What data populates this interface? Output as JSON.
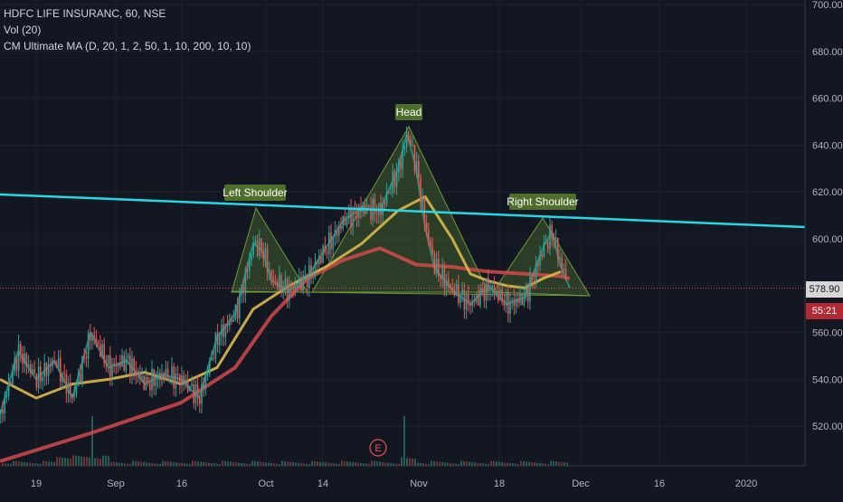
{
  "legend": {
    "title": "HDFC LIFE INSURANC, 60, NSE",
    "volume": "Vol (20)",
    "indicator": "CM Ultimate MA (D, 20, 1, 2, 50, 1, 10, 200, 10, 10)"
  },
  "price_axis": {
    "ticks": [
      "700.00",
      "680.00",
      "660.00",
      "640.00",
      "620.00",
      "600.00",
      "580.00",
      "560.00",
      "540.00",
      "520.00"
    ],
    "last_price": "578.90",
    "countdown": "55:21"
  },
  "time_axis": {
    "ticks": [
      "19",
      "Sep",
      "16",
      "Oct",
      "14",
      "Nov",
      "18",
      "Dec",
      "16",
      "2020"
    ]
  },
  "annotations": {
    "left_shoulder": "Left Shoulder",
    "head": "Head",
    "right_shoulder": "Right Shoulder",
    "earnings": "E"
  },
  "colors": {
    "background": "#131722",
    "neckline": "#26d7e5",
    "pattern_fill": "#4a6b2e",
    "label_bg": "#4f6e2c",
    "ma_fast": "#26a69a",
    "ma_mid": "#d8b84e",
    "ma_slow": "#d04a4a",
    "last_price_line": "#e05555"
  },
  "chart_data": {
    "type": "line",
    "title": "HDFC LIFE INSURANC, 60, NSE",
    "ylim": [
      505,
      705
    ],
    "series": [
      {
        "name": "Price",
        "x": [
          0,
          20,
          40,
          60,
          80,
          100,
          120,
          140,
          160,
          180,
          200,
          220,
          240,
          260,
          280,
          290,
          300,
          320,
          340,
          360,
          380,
          400,
          420,
          440,
          450,
          460,
          470,
          480,
          500,
          520,
          540,
          560,
          580,
          600,
          610,
          620,
          630
        ],
        "values": [
          525,
          552,
          540,
          548,
          532,
          560,
          545,
          548,
          538,
          542,
          540,
          532,
          558,
          568,
          598,
          595,
          582,
          578,
          584,
          596,
          608,
          613,
          612,
          630,
          645,
          630,
          605,
          588,
          578,
          572,
          580,
          572,
          575,
          596,
          603,
          588,
          579
        ]
      },
      {
        "name": "MA slow",
        "x": [
          0,
          100,
          200,
          260,
          300,
          340,
          380,
          420,
          460,
          500,
          540,
          580,
          620,
          630
        ],
        "values": [
          505,
          517,
          530,
          545,
          567,
          583,
          591,
          596,
          589,
          588,
          586,
          585,
          584,
          583
        ]
      },
      {
        "name": "MA mid",
        "x": [
          0,
          40,
          80,
          120,
          160,
          200,
          240,
          280,
          320,
          360,
          400,
          440,
          470,
          500,
          520,
          540,
          560,
          580,
          600,
          620
        ],
        "values": [
          540,
          532,
          538,
          540,
          543,
          538,
          545,
          570,
          580,
          588,
          598,
          612,
          618,
          600,
          585,
          582,
          580,
          579,
          583,
          586
        ]
      }
    ],
    "volume": {
      "name": "Vol (20)",
      "spikes_x": [
        100,
        445
      ]
    }
  }
}
